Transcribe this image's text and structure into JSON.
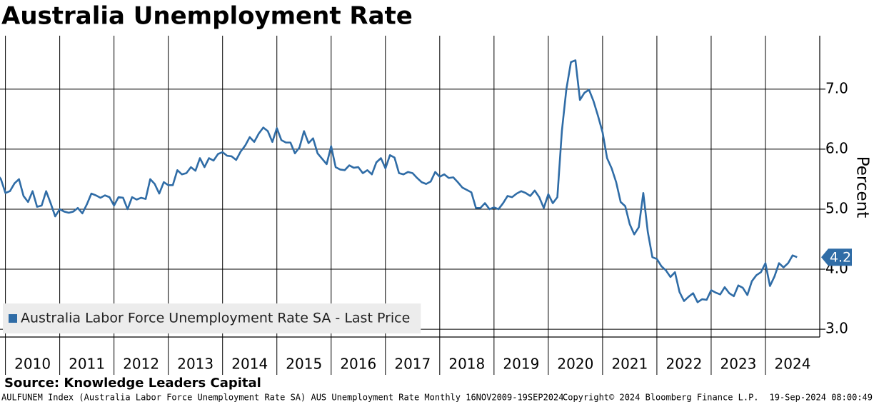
{
  "chart_data": {
    "type": "line",
    "title": "Australia Unemployment Rate",
    "y_axis_label": "Percent",
    "source": "Source: Knowledge Leaders Capital",
    "footer_left": "AULFUNEM Index (Australia Labor Force Unemployment Rate SA) AUS Unemployment Rate  Monthly 16NOV2009-19SEP2024",
    "footer_center": "Copyright© 2024 Bloomberg Finance L.P.",
    "footer_right": "19-Sep-2024 08:00:49",
    "xlim": [
      2009.9,
      2025
    ],
    "xticks": [
      {
        "value": 2010,
        "label": "2010"
      },
      {
        "value": 2011,
        "label": "2011"
      },
      {
        "value": 2012,
        "label": "2012"
      },
      {
        "value": 2013,
        "label": "2013"
      },
      {
        "value": 2014,
        "label": "2014"
      },
      {
        "value": 2015,
        "label": "2015"
      },
      {
        "value": 2016,
        "label": "2016"
      },
      {
        "value": 2017,
        "label": "2017"
      },
      {
        "value": 2018,
        "label": "2018"
      },
      {
        "value": 2019,
        "label": "2019"
      },
      {
        "value": 2020,
        "label": "2020"
      },
      {
        "value": 2021,
        "label": "2021"
      },
      {
        "value": 2022,
        "label": "2022"
      },
      {
        "value": 2023,
        "label": "2023"
      },
      {
        "value": 2024,
        "label": "2024"
      }
    ],
    "ylim": [
      2.87,
      7.89
    ],
    "yticks": [
      {
        "value": 3,
        "label": "3.0"
      },
      {
        "value": 4,
        "label": "4.0"
      },
      {
        "value": 5,
        "label": "5.0"
      },
      {
        "value": 6,
        "label": "6.0"
      },
      {
        "value": 7,
        "label": "7.0"
      }
    ],
    "grid": true,
    "legend": "lower left",
    "last_value_tag": true,
    "x": [
      2009.833,
      2009.917,
      2010.0,
      2010.083,
      2010.167,
      2010.25,
      2010.333,
      2010.417,
      2010.5,
      2010.583,
      2010.667,
      2010.75,
      2010.833,
      2010.917,
      2011.0,
      2011.083,
      2011.167,
      2011.25,
      2011.333,
      2011.417,
      2011.5,
      2011.583,
      2011.667,
      2011.75,
      2011.833,
      2011.917,
      2012.0,
      2012.083,
      2012.167,
      2012.25,
      2012.333,
      2012.417,
      2012.5,
      2012.583,
      2012.667,
      2012.75,
      2012.833,
      2012.917,
      2013.0,
      2013.083,
      2013.167,
      2013.25,
      2013.333,
      2013.417,
      2013.5,
      2013.583,
      2013.667,
      2013.75,
      2013.833,
      2013.917,
      2014.0,
      2014.083,
      2014.167,
      2014.25,
      2014.333,
      2014.417,
      2014.5,
      2014.583,
      2014.667,
      2014.75,
      2014.833,
      2014.917,
      2015.0,
      2015.083,
      2015.167,
      2015.25,
      2015.333,
      2015.417,
      2015.5,
      2015.583,
      2015.667,
      2015.75,
      2015.833,
      2015.917,
      2016.0,
      2016.083,
      2016.167,
      2016.25,
      2016.333,
      2016.417,
      2016.5,
      2016.583,
      2016.667,
      2016.75,
      2016.833,
      2016.917,
      2017.0,
      2017.083,
      2017.167,
      2017.25,
      2017.333,
      2017.417,
      2017.5,
      2017.583,
      2017.667,
      2017.75,
      2017.833,
      2017.917,
      2018.0,
      2018.083,
      2018.167,
      2018.25,
      2018.333,
      2018.417,
      2018.5,
      2018.583,
      2018.667,
      2018.75,
      2018.833,
      2018.917,
      2019.0,
      2019.083,
      2019.167,
      2019.25,
      2019.333,
      2019.417,
      2019.5,
      2019.583,
      2019.667,
      2019.75,
      2019.833,
      2019.917,
      2020.0,
      2020.083,
      2020.167,
      2020.25,
      2020.333,
      2020.417,
      2020.5,
      2020.583,
      2020.667,
      2020.75,
      2020.833,
      2020.917,
      2021.0,
      2021.083,
      2021.167,
      2021.25,
      2021.333,
      2021.417,
      2021.5,
      2021.583,
      2021.667,
      2021.75,
      2021.833,
      2021.917,
      2022.0,
      2022.083,
      2022.167,
      2022.25,
      2022.333,
      2022.417,
      2022.5,
      2022.583,
      2022.667,
      2022.75,
      2022.833,
      2022.917,
      2023.0,
      2023.083,
      2023.167,
      2023.25,
      2023.333,
      2023.417,
      2023.5,
      2023.583,
      2023.667,
      2023.75,
      2023.833,
      2023.917,
      2024.0,
      2024.083,
      2024.167,
      2024.25,
      2024.333,
      2024.417,
      2024.5,
      2024.583
    ],
    "series": [
      {
        "name": "Australia Labor Force Unemployment Rate SA - Last Price",
        "color": "#2f6ca6",
        "values": [
          5.6,
          5.5,
          5.27,
          5.3,
          5.43,
          5.5,
          5.22,
          5.12,
          5.3,
          5.04,
          5.06,
          5.3,
          5.1,
          4.88,
          5.0,
          4.96,
          4.94,
          4.96,
          5.02,
          4.93,
          5.08,
          5.26,
          5.23,
          5.19,
          5.23,
          5.2,
          5.06,
          5.2,
          5.19,
          5.0,
          5.2,
          5.16,
          5.19,
          5.17,
          5.5,
          5.42,
          5.26,
          5.45,
          5.4,
          5.4,
          5.65,
          5.58,
          5.6,
          5.7,
          5.64,
          5.85,
          5.7,
          5.85,
          5.81,
          5.92,
          5.95,
          5.89,
          5.88,
          5.82,
          5.96,
          6.06,
          6.2,
          6.12,
          6.26,
          6.36,
          6.3,
          6.12,
          6.35,
          6.15,
          6.11,
          6.11,
          5.93,
          6.03,
          6.3,
          6.1,
          6.18,
          5.93,
          5.84,
          5.75,
          6.05,
          5.7,
          5.66,
          5.65,
          5.73,
          5.69,
          5.7,
          5.6,
          5.65,
          5.58,
          5.78,
          5.85,
          5.68,
          5.9,
          5.86,
          5.6,
          5.58,
          5.62,
          5.6,
          5.52,
          5.45,
          5.42,
          5.46,
          5.62,
          5.54,
          5.58,
          5.52,
          5.53,
          5.45,
          5.36,
          5.32,
          5.28,
          5.02,
          5.02,
          5.1,
          5.0,
          5.03,
          5.0,
          5.1,
          5.22,
          5.2,
          5.26,
          5.3,
          5.27,
          5.22,
          5.31,
          5.2,
          5.02,
          5.25,
          5.1,
          5.2,
          6.3,
          7.0,
          7.45,
          7.48,
          6.82,
          6.94,
          6.99,
          6.8,
          6.55,
          6.28,
          5.85,
          5.68,
          5.45,
          5.12,
          5.05,
          4.75,
          4.58,
          4.7,
          5.27,
          4.62,
          4.2,
          4.17,
          4.05,
          3.98,
          3.87,
          3.95,
          3.62,
          3.47,
          3.54,
          3.6,
          3.45,
          3.5,
          3.49,
          3.65,
          3.61,
          3.58,
          3.7,
          3.6,
          3.55,
          3.73,
          3.69,
          3.57,
          3.8,
          3.9,
          3.95,
          4.1,
          3.72,
          3.88,
          4.1,
          4.03,
          4.1,
          4.23,
          4.2
        ]
      }
    ]
  }
}
